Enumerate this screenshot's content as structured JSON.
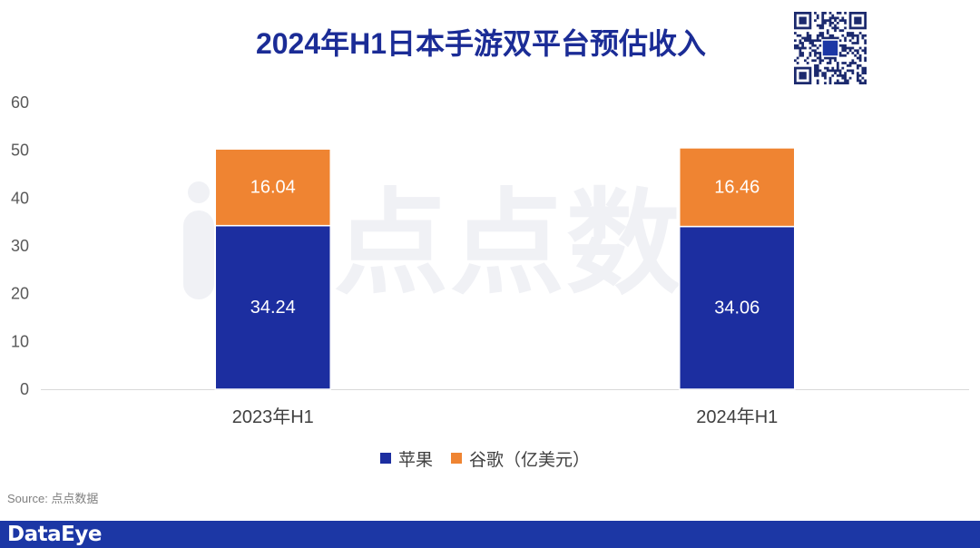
{
  "chart_data": {
    "type": "bar",
    "stacked": true,
    "title": "2024年H1日本手游双平台预估收入",
    "categories": [
      "2023年H1",
      "2024年H1"
    ],
    "series": [
      {
        "name": "苹果",
        "values": [
          34.24,
          34.06
        ],
        "color": "#1c2ea0"
      },
      {
        "name": "谷歌（亿美元）",
        "values": [
          16.04,
          16.46
        ],
        "color": "#ef8432"
      }
    ],
    "ylim": [
      0,
      60
    ],
    "yticks": [
      0,
      10,
      20,
      30,
      40,
      50,
      60
    ],
    "grid": false,
    "legend": "bottom",
    "data_labels": true
  },
  "watermark": {
    "text": "点点数"
  },
  "source": "Source: 点点数据",
  "brand": "DataEye",
  "colors": {
    "title": "#1b2c96",
    "banner": "#1c37a5",
    "qr": "#1c2a6e",
    "watermark": "#f0f1f5"
  }
}
